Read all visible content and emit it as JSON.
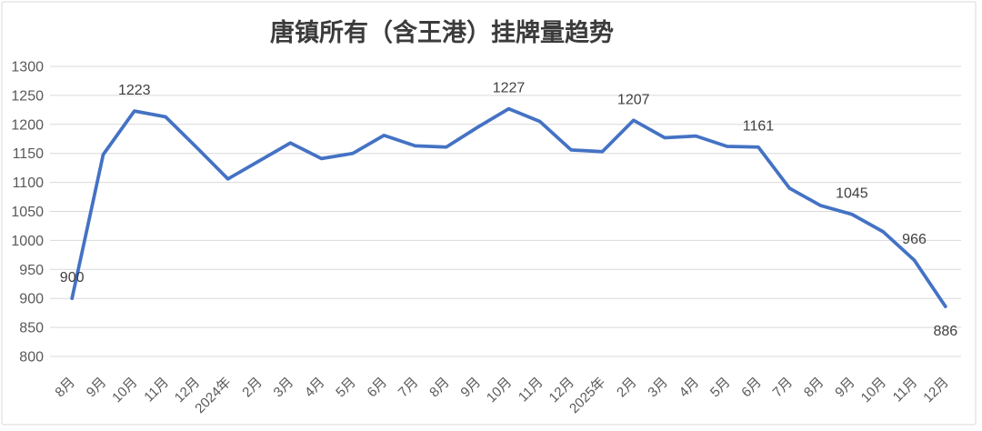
{
  "chart_data": {
    "type": "line",
    "title": "唐镇所有（含王港）挂牌量趋势",
    "categories": [
      "8月",
      "9月",
      "10月",
      "11月",
      "12月",
      "2024年",
      "2月",
      "3月",
      "4月",
      "5月",
      "6月",
      "7月",
      "8月",
      "9月",
      "10月",
      "11月",
      "12月",
      "2025年",
      "2月",
      "3月",
      "4月",
      "5月",
      "6月",
      "7月",
      "8月",
      "9月",
      "10月",
      "11月",
      "12月"
    ],
    "values": [
      900,
      1148,
      1223,
      1213,
      1160,
      1106,
      1137,
      1168,
      1141,
      1150,
      1181,
      1163,
      1161,
      1195,
      1227,
      1205,
      1156,
      1153,
      1207,
      1177,
      1180,
      1162,
      1161,
      1090,
      1060,
      1045,
      1015,
      966,
      886
    ],
    "data_labels": [
      {
        "index": 0,
        "text": "900",
        "placement": "above"
      },
      {
        "index": 2,
        "text": "1223",
        "placement": "above"
      },
      {
        "index": 14,
        "text": "1227",
        "placement": "above"
      },
      {
        "index": 18,
        "text": "1207",
        "placement": "above"
      },
      {
        "index": 22,
        "text": "1161",
        "placement": "above"
      },
      {
        "index": 25,
        "text": "1045",
        "placement": "above"
      },
      {
        "index": 27,
        "text": "966",
        "placement": "above"
      },
      {
        "index": 28,
        "text": "886",
        "placement": "below"
      }
    ],
    "ylim": [
      800,
      1300
    ],
    "ytick_step": 50,
    "grid": true,
    "legend": "none",
    "colors": {
      "line": "#4472C4",
      "gridline": "#D9D9D9",
      "axis_label": "#595959",
      "data_label": "#404040",
      "title": "#3B3B3B",
      "border": "#D8D8D8",
      "background": "#FFFFFF"
    }
  }
}
